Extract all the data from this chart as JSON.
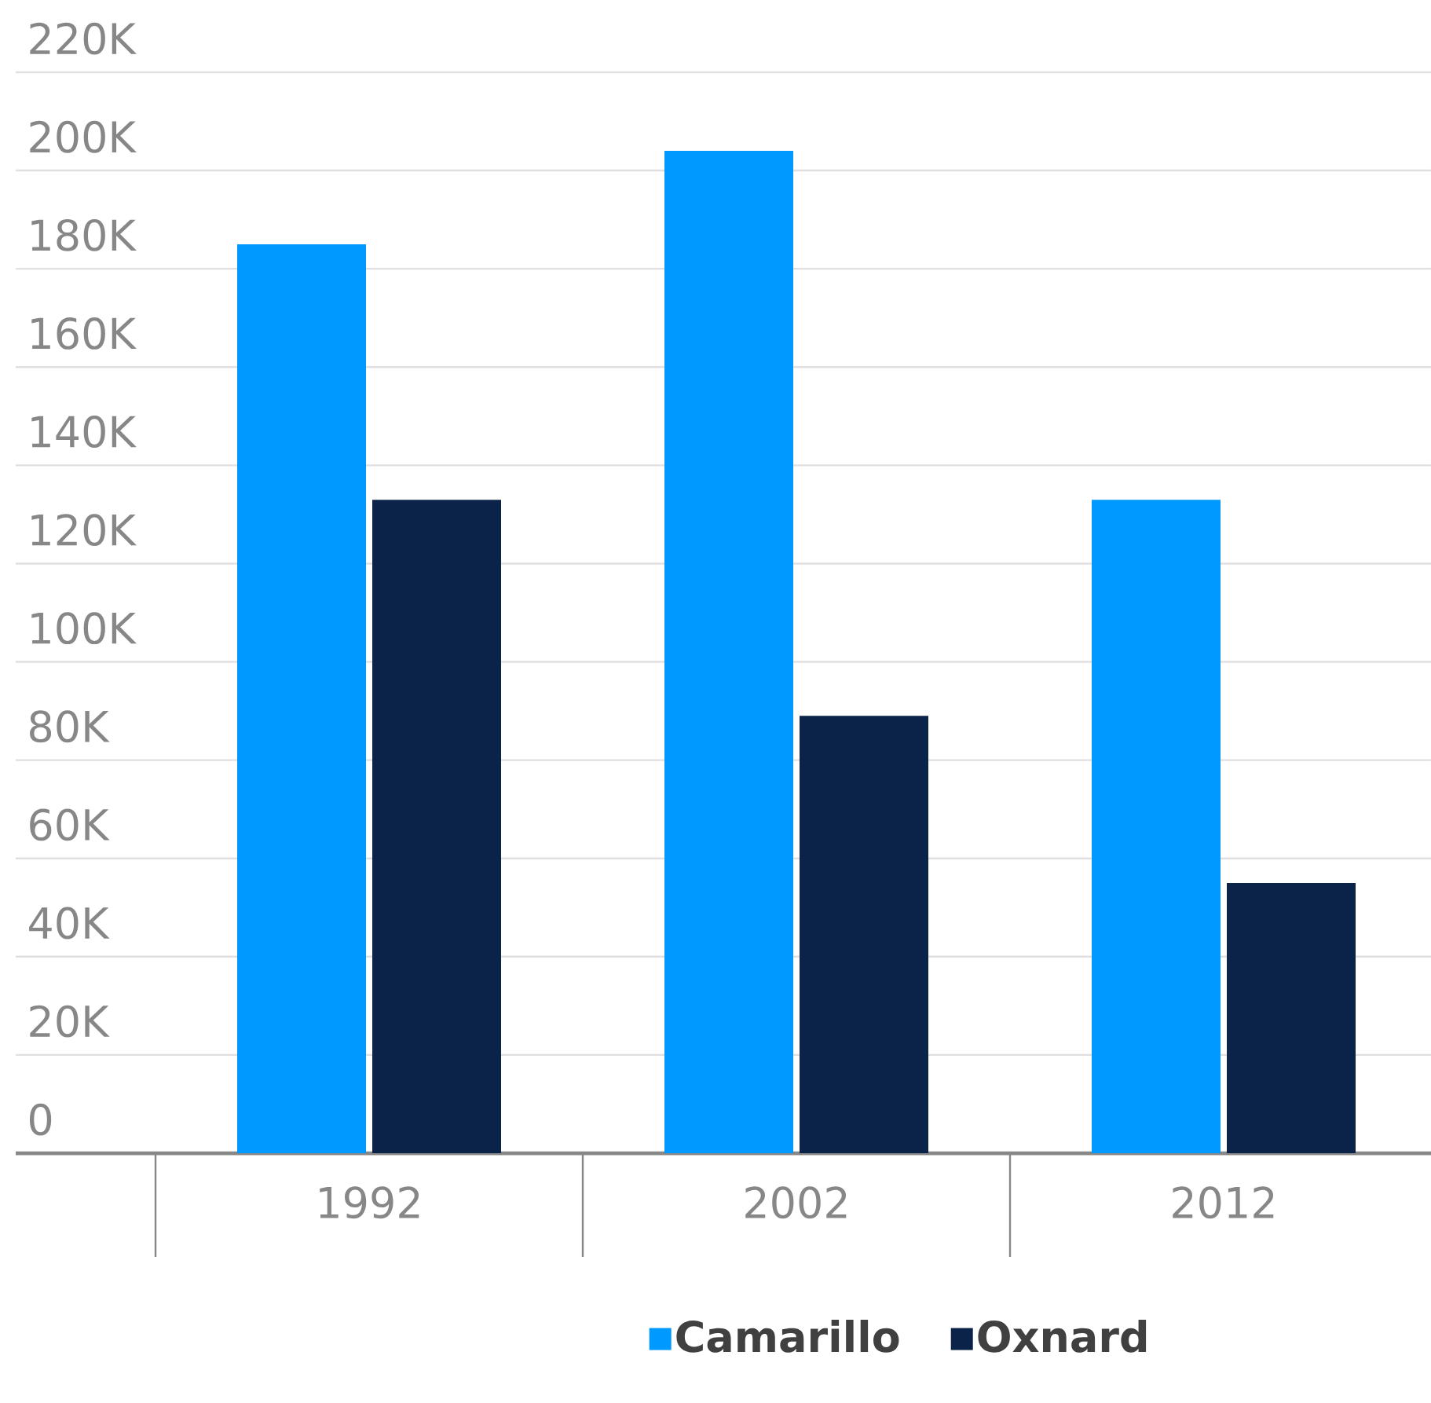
{
  "chart_data": {
    "type": "bar",
    "categories": [
      "1992",
      "2002",
      "2012"
    ],
    "series": [
      {
        "name": "Camarillo",
        "color": "#0099ff",
        "values": [
          185000,
          204000,
          133000
        ]
      },
      {
        "name": "Oxnard",
        "color": "#0b2349",
        "values": [
          133000,
          89000,
          55000
        ]
      }
    ],
    "ylim": [
      0,
      220000
    ],
    "yticks": [
      0,
      {
        "value": 20000,
        "label": "20K"
      },
      {
        "value": 40000,
        "label": "40K"
      },
      {
        "value": 60000,
        "label": "60K"
      },
      {
        "value": 80000,
        "label": "80K"
      },
      {
        "value": 100000,
        "label": "100K"
      },
      {
        "value": 120000,
        "label": "120K"
      },
      {
        "value": 140000,
        "label": "140K"
      },
      {
        "value": 160000,
        "label": "160K"
      },
      {
        "value": 180000,
        "label": "180K"
      },
      {
        "value": 200000,
        "label": "200K"
      },
      {
        "value": 220000,
        "label": "220K"
      }
    ],
    "grid": "y",
    "legend": "bottom"
  }
}
